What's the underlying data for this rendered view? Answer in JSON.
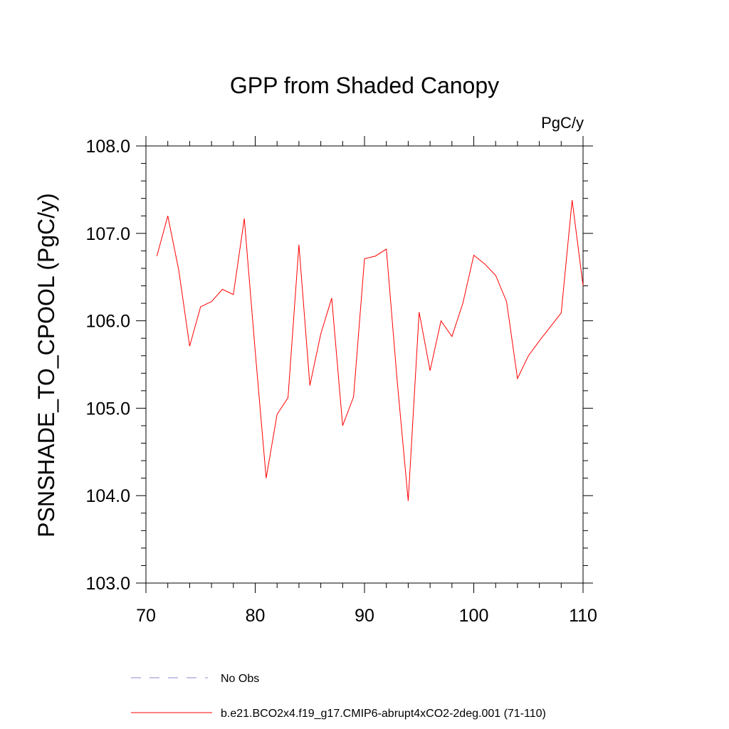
{
  "chart_data": {
    "type": "line",
    "title": "GPP from Shaded Canopy",
    "units_label": "PgC/y",
    "xlabel": "",
    "ylabel": "PSNSHADE_TO_CPOOL  (PgC/y)",
    "xlim": [
      70,
      110
    ],
    "ylim": [
      103.0,
      108.0
    ],
    "xticks": [
      70,
      80,
      90,
      100,
      110
    ],
    "yticks": [
      103.0,
      104.0,
      105.0,
      106.0,
      107.0,
      108.0
    ],
    "grid": false,
    "series": [
      {
        "name": "b.e21.BCO2x4.f19_g17.CMIP6-abrupt4xCO2-2deg.001 (71-110)",
        "color": "#ff0000",
        "style": "solid",
        "x": [
          71,
          72,
          73,
          74,
          75,
          76,
          77,
          78,
          79,
          80,
          81,
          82,
          83,
          84,
          85,
          86,
          87,
          88,
          89,
          90,
          91,
          92,
          93,
          94,
          95,
          96,
          97,
          98,
          99,
          100,
          101,
          102,
          103,
          104,
          105,
          106,
          107,
          108,
          109,
          110
        ],
        "values": [
          106.74,
          107.2,
          106.58,
          105.71,
          106.16,
          106.22,
          106.36,
          106.3,
          107.17,
          105.65,
          104.2,
          104.93,
          105.12,
          106.87,
          105.26,
          105.85,
          106.26,
          104.8,
          105.13,
          106.71,
          106.74,
          106.82,
          105.3,
          103.94,
          106.1,
          105.43,
          106.0,
          105.82,
          106.2,
          106.75,
          106.65,
          106.52,
          106.22,
          105.34,
          105.6,
          105.77,
          105.93,
          106.09,
          107.38,
          106.4
        ]
      }
    ],
    "legend": {
      "placement": "bottom",
      "entries": [
        {
          "label": "No Obs",
          "color": "#8888cc",
          "style": "dashed"
        },
        {
          "label": "b.e21.BCO2x4.f19_g17.CMIP6-abrupt4xCO2-2deg.001 (71-110)",
          "color": "#ff0000",
          "style": "solid"
        }
      ]
    }
  }
}
